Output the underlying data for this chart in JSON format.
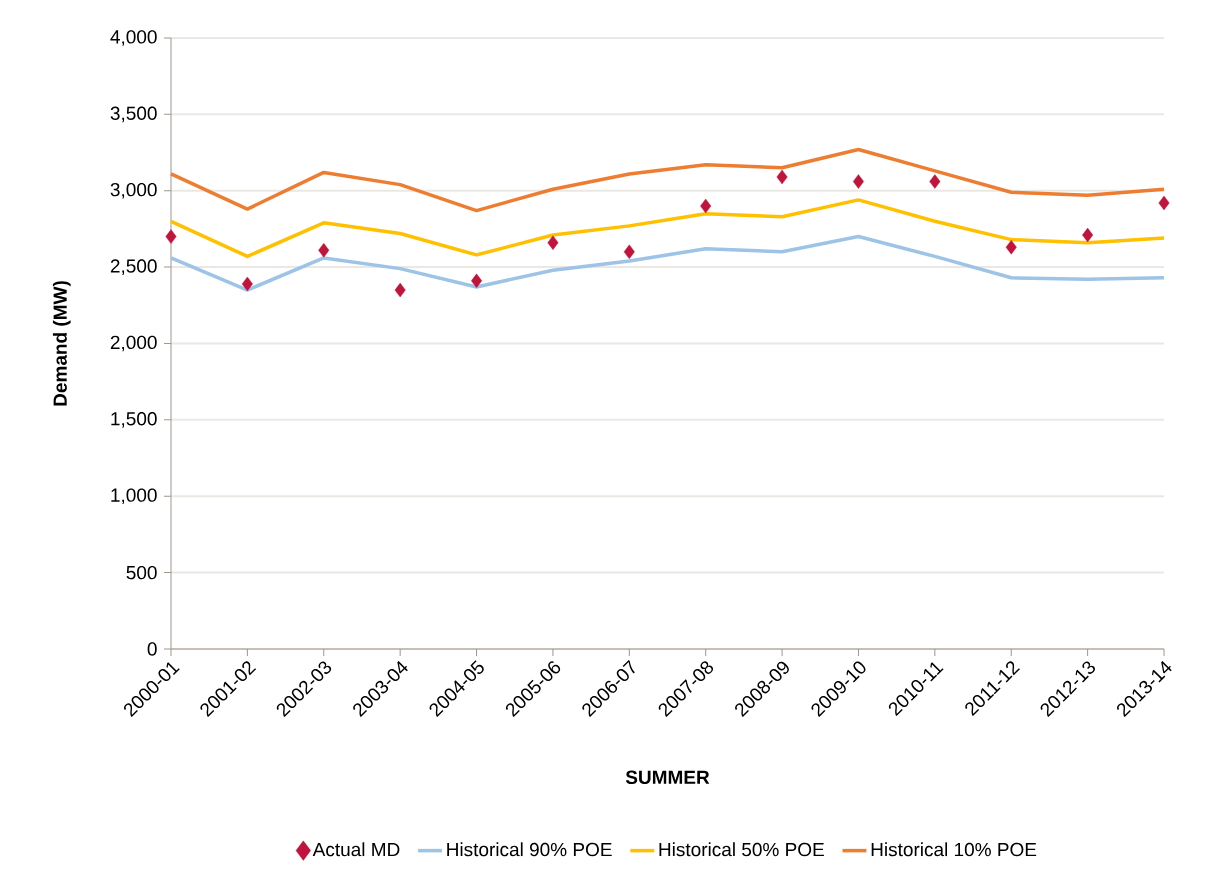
{
  "chart_data": {
    "type": "line",
    "xlabel": "SUMMER",
    "ylabel": "Demand (MW)",
    "categories": [
      "2000-01",
      "2001-02",
      "2002-03",
      "2003-04",
      "2004-05",
      "2005-06",
      "2006-07",
      "2007-08",
      "2008-09",
      "2009-10",
      "2010-11",
      "2011-12",
      "2012-13",
      "2013-14"
    ],
    "series": [
      {
        "name": "Actual MD",
        "type": "scatter",
        "marker": "diamond",
        "color": "#c0143c",
        "values": [
          2700,
          2390,
          2610,
          2350,
          2410,
          2660,
          2600,
          2900,
          3090,
          3060,
          3060,
          2630,
          2710,
          2920
        ]
      },
      {
        "name": "Historical 90% POE",
        "color": "#9dc3e6",
        "values": [
          2560,
          2350,
          2560,
          2490,
          2370,
          2480,
          2540,
          2620,
          2600,
          2700,
          2570,
          2430,
          2420,
          2430
        ]
      },
      {
        "name": "Historical 50% POE",
        "color": "#ffc000",
        "values": [
          2800,
          2570,
          2790,
          2720,
          2580,
          2710,
          2770,
          2850,
          2830,
          2940,
          2800,
          2680,
          2660,
          2690
        ]
      },
      {
        "name": "Historical 10% POE",
        "color": "#ed7d31",
        "values": [
          3110,
          2880,
          3120,
          3040,
          2870,
          3010,
          3110,
          3170,
          3150,
          3270,
          3130,
          2990,
          2970,
          3010
        ]
      }
    ],
    "ylim": [
      0,
      4000
    ],
    "yticks": [
      {
        "value": 0,
        "label": "0"
      },
      {
        "value": 500,
        "label": "500"
      },
      {
        "value": 1000,
        "label": "1,000"
      },
      {
        "value": 1500,
        "label": "1,500"
      },
      {
        "value": 2000,
        "label": "2,000"
      },
      {
        "value": 2500,
        "label": "2,500"
      },
      {
        "value": 3000,
        "label": "3,000"
      },
      {
        "value": 3500,
        "label": "3,500"
      },
      {
        "value": 4000,
        "label": "4,000"
      }
    ],
    "grid": "y",
    "legend": "bottom"
  }
}
